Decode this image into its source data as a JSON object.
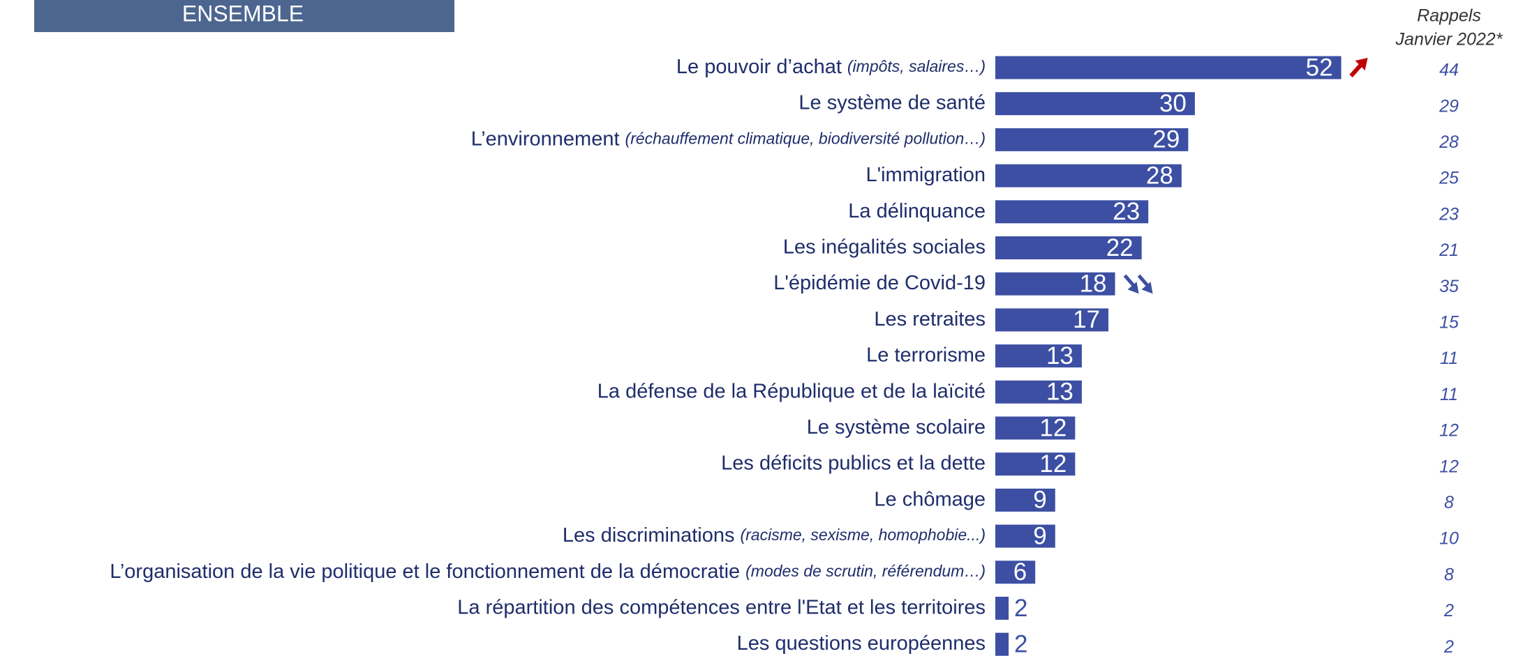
{
  "chart_data": {
    "type": "bar",
    "orientation": "horizontal",
    "title": "ENSEMBLE",
    "categories": [
      "Le pouvoir d’achat",
      "Le système de santé",
      "L’environnement",
      "L'immigration",
      "La délinquance",
      "Les inégalités sociales",
      "L'épidémie de Covid-19",
      "Les retraites",
      "Le terrorisme",
      "La défense de la République et de la laïcité",
      "Le système scolaire",
      "Les déficits publics et la dette",
      "Le chômage",
      "Les discriminations",
      "L’organisation de la vie politique et le fonctionnement de la démocratie",
      "La répartition des compétences entre l'Etat et les territoires",
      "Les questions européennes"
    ],
    "category_details": [
      "(impôts, salaires…)",
      null,
      "(réchauffement climatique, biodiversité pollution…)",
      null,
      null,
      null,
      null,
      null,
      null,
      null,
      null,
      null,
      null,
      "(racisme, sexisme, homophobie...)",
      "(modes de scrutin, référendum…)",
      null,
      null
    ],
    "values": [
      52,
      30,
      29,
      28,
      23,
      22,
      18,
      17,
      13,
      13,
      12,
      12,
      9,
      9,
      6,
      2,
      2
    ],
    "color": "#3c4fa3",
    "trends": [
      "up",
      null,
      null,
      null,
      null,
      null,
      "down",
      null,
      null,
      null,
      null,
      null,
      null,
      null,
      null,
      null,
      null
    ],
    "recall_header": [
      "Rappels",
      "Janvier 2022*"
    ],
    "recall_values": [
      44,
      29,
      28,
      25,
      23,
      21,
      35,
      15,
      11,
      11,
      12,
      12,
      8,
      10,
      8,
      2,
      2
    ]
  }
}
